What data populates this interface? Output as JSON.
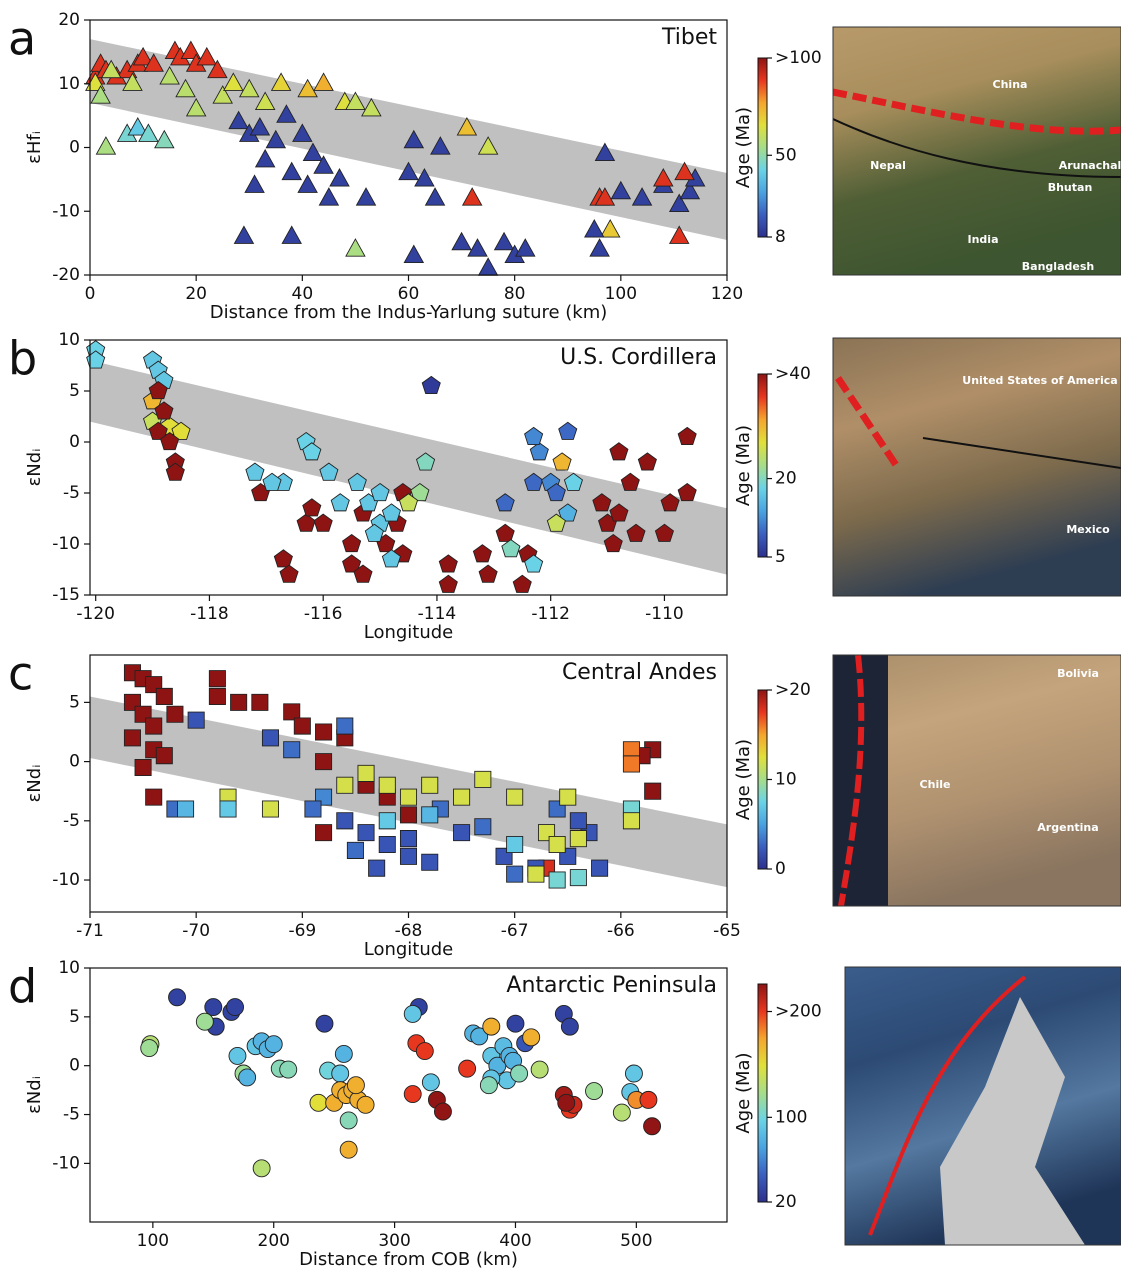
{
  "chart_data": [
    {
      "type": "scatter",
      "panel": "a",
      "title": "Tibet",
      "xlabel": "Distance from the Indus-Yarlung suture (km)",
      "ylabel": "εHfᵢ",
      "marker": "triangle",
      "xlim": [
        0,
        120
      ],
      "ylim": [
        -20,
        20
      ],
      "xticks": [
        0,
        20,
        40,
        60,
        80,
        100,
        120
      ],
      "yticks": [
        -20,
        -10,
        0,
        10,
        20
      ],
      "band": {
        "x": [
          0,
          120
        ],
        "upper": [
          17,
          -4
        ],
        "lower": [
          7,
          -14.5
        ],
        "color": "#c0c0c0"
      },
      "colorbar": {
        "label": "Age (Ma)",
        "clim": [
          8,
          100
        ],
        "ticks": [
          8,
          50,
          {
            "value": 100,
            "label": ">100"
          }
        ]
      },
      "colormap": [
        "#2d2f8c",
        "#3b5fc0",
        "#4aa3e0",
        "#6bd3e6",
        "#a6dd8a",
        "#e0e03a",
        "#f5a52e",
        "#e8361f",
        "#8e1414"
      ],
      "map_labels": [
        "China",
        "Nepal",
        "Arunachal",
        "Bhutan",
        "India",
        "Bangladesh"
      ],
      "x": [
        1,
        2,
        3,
        5,
        7,
        9,
        10,
        12,
        16,
        17,
        19,
        20,
        22,
        24,
        1,
        2,
        4,
        8,
        15,
        18,
        20,
        25,
        27,
        30,
        33,
        36,
        41,
        44,
        48,
        50,
        53,
        71,
        75,
        3,
        7,
        9,
        11,
        14,
        50,
        98,
        28,
        30,
        32,
        35,
        37,
        40,
        42,
        44,
        31,
        33,
        38,
        41,
        45,
        47,
        52,
        29,
        38,
        61,
        63,
        65,
        66,
        70,
        73,
        75,
        78,
        80,
        82,
        61,
        95,
        96,
        97,
        100,
        104,
        108,
        111,
        113,
        114,
        60,
        72,
        96,
        97,
        108,
        112,
        111
      ],
      "y": [
        11,
        13,
        12,
        11,
        12,
        13,
        14,
        13,
        15,
        14,
        15,
        13,
        14,
        12,
        10,
        8,
        12,
        10,
        11,
        9,
        6,
        8,
        10,
        9,
        7,
        10,
        9,
        10,
        7,
        7,
        6,
        3,
        0,
        0,
        2,
        3,
        2,
        1,
        -16,
        -13,
        4,
        2,
        3,
        1,
        5,
        2,
        -1,
        -3,
        -6,
        -2,
        -4,
        -6,
        -8,
        -5,
        -8,
        -14,
        -14,
        1,
        -5,
        -8,
        0,
        -15,
        -16,
        -19,
        -15,
        -17,
        -16,
        -17,
        -13,
        -16,
        -1,
        -7,
        -8,
        -6,
        -9,
        -7,
        -5,
        -4,
        -8,
        -8,
        -8,
        -5,
        -4,
        -14
      ],
      "age": [
        90,
        90,
        90,
        90,
        90,
        90,
        90,
        90,
        90,
        90,
        90,
        90,
        90,
        90,
        65,
        55,
        60,
        60,
        58,
        58,
        58,
        60,
        65,
        60,
        62,
        68,
        72,
        75,
        65,
        60,
        60,
        72,
        62,
        55,
        45,
        40,
        45,
        48,
        55,
        70,
        12,
        12,
        12,
        12,
        12,
        12,
        12,
        12,
        12,
        12,
        12,
        12,
        12,
        12,
        12,
        12,
        12,
        12,
        12,
        12,
        12,
        12,
        12,
        12,
        12,
        12,
        12,
        12,
        12,
        12,
        12,
        12,
        12,
        12,
        12,
        12,
        12,
        12,
        90,
        90,
        90,
        90,
        90,
        90
      ]
    },
    {
      "type": "scatter",
      "panel": "b",
      "title": "U.S. Cordillera",
      "xlabel": "Longitude",
      "ylabel": "εNdᵢ",
      "marker": "pentagon",
      "xlim": [
        -120.1,
        -108.9
      ],
      "ylim": [
        -15,
        10
      ],
      "xticks": [
        -120,
        -118,
        -116,
        -114,
        -112,
        -110
      ],
      "yticks": [
        -15,
        -10,
        -5,
        0,
        5,
        10
      ],
      "band": {
        "x": [
          -120.1,
          -108.9
        ],
        "upper": [
          8,
          -6.5
        ],
        "lower": [
          2,
          -13
        ],
        "color": "#c0c0c0"
      },
      "colorbar": {
        "label": "Age (Ma)",
        "clim": [
          5,
          40
        ],
        "ticks": [
          5,
          20,
          {
            "value": 40,
            "label": ">40"
          }
        ]
      },
      "colormap": [
        "#2d2f8c",
        "#3b5fc0",
        "#4aa3e0",
        "#6bd3e6",
        "#a6dd8a",
        "#e0e03a",
        "#f5a52e",
        "#e8361f",
        "#8e1414"
      ],
      "map_labels": [
        "United States of America",
        "Mexico"
      ],
      "x": [
        -120,
        -120,
        -119,
        -118.9,
        -118.8,
        -119,
        -119,
        -118.7,
        -118.5,
        -118.9,
        -118.8,
        -118.9,
        -118.7,
        -118.6,
        -118.6,
        -117.1,
        -116.7,
        -116.6,
        -116.3,
        -116.2,
        -116,
        -115.5,
        -115.5,
        -115.3,
        -115.3,
        -114.9,
        -114.7,
        -114.6,
        -114.6,
        -113.8,
        -113.8,
        -113.2,
        -113.1,
        -112.8,
        -112.5,
        -112.4,
        -111,
        -110.8,
        -110.6,
        -110.5,
        -110.3,
        -110,
        -109.6,
        -109.6,
        -110.9,
        -111.1,
        -109.9,
        -110.8,
        -116.3,
        -116.2,
        -116.7,
        -115.9,
        -115.7,
        -115.4,
        -115.2,
        -115,
        -115,
        -114.8,
        -115.1,
        -114.8,
        -114.2,
        -114.3,
        -114.5,
        -114.1,
        -116.9,
        -117.2,
        -112.8,
        -112.3,
        -112.2,
        -112,
        -111.8,
        -111.7,
        -111.9,
        -112.7,
        -112.3,
        -111.7,
        -112.3,
        -111.9,
        -111.6
      ],
      "y": [
        9,
        8,
        8,
        7,
        6,
        4,
        2,
        1.5,
        1,
        5,
        3,
        1,
        0,
        -2,
        -3,
        -5,
        -11.5,
        -13,
        -8,
        -6.5,
        -8,
        -10,
        -12,
        -13,
        -7,
        -10,
        -8,
        -11,
        -5,
        -12,
        -14,
        -11,
        -13,
        -9,
        -14,
        -11,
        -8,
        -7,
        -4,
        -9,
        -2,
        -9,
        0.5,
        -5,
        -10,
        -6,
        -6,
        -1,
        0,
        -1,
        -4,
        -3,
        -6,
        -4,
        -6,
        -5,
        -8,
        -7,
        -9,
        -11.5,
        -2,
        -5,
        -6,
        5.5,
        -4,
        -3,
        -6,
        -4,
        -1,
        -4,
        -2,
        -7,
        -8,
        -10.5,
        -12,
        1,
        0.5,
        -5,
        -4
      ],
      "age": [
        18,
        18,
        17,
        17,
        17,
        30,
        25,
        27,
        27,
        40,
        40,
        40,
        40,
        40,
        40,
        40,
        40,
        40,
        40,
        40,
        40,
        40,
        40,
        40,
        40,
        40,
        40,
        40,
        40,
        40,
        40,
        40,
        40,
        40,
        40,
        40,
        40,
        40,
        40,
        40,
        40,
        40,
        40,
        40,
        40,
        40,
        40,
        40,
        18,
        18,
        17,
        17,
        17,
        17,
        17,
        17,
        17,
        17,
        17,
        17,
        20,
        22,
        25,
        6,
        17,
        17,
        10,
        10,
        12,
        12,
        30,
        15,
        25,
        20,
        18,
        10,
        12,
        10,
        18
      ]
    },
    {
      "type": "scatter",
      "panel": "c",
      "title": "Central Andes",
      "xlabel": "Longitude",
      "ylabel": "εNdᵢ",
      "marker": "square",
      "xlim": [
        -71,
        -65
      ],
      "ylim": [
        -12.7,
        9
      ],
      "xticks": [
        -71,
        -70,
        -69,
        -68,
        -67,
        -66,
        -65
      ],
      "yticks": [
        -10,
        -5,
        0,
        5
      ],
      "band": {
        "x": [
          -71,
          -65
        ],
        "upper": [
          5.5,
          -5.3
        ],
        "lower": [
          0.3,
          -10.6
        ],
        "color": "#c0c0c0"
      },
      "colorbar": {
        "label": "Age (Ma)",
        "clim": [
          0,
          20
        ],
        "ticks": [
          0,
          10,
          {
            "value": 20,
            "label": ">20"
          }
        ]
      },
      "colormap": [
        "#2d2f8c",
        "#3b5fc0",
        "#4aa3e0",
        "#6bd3e6",
        "#a6dd8a",
        "#e0e03a",
        "#f5a52e",
        "#e8361f",
        "#8e1414"
      ],
      "map_labels": [
        "Bolivia",
        "Chile",
        "Argentina"
      ],
      "x": [
        -70.6,
        -70.5,
        -70.4,
        -70.6,
        -70.5,
        -70.4,
        -70.6,
        -70.4,
        -70.3,
        -70.5,
        -70.3,
        -70.2,
        -70.4,
        -69.8,
        -69.8,
        -69.6,
        -69.4,
        -69.1,
        -69,
        -68.8,
        -68.6,
        -68.8,
        -68.4,
        -68.2,
        -68,
        -68.8,
        -65.7,
        -65.7,
        -65.8,
        -66.7,
        -70,
        -70.2,
        -69.3,
        -69.1,
        -68.6,
        -68.8,
        -68.6,
        -68.4,
        -68.2,
        -68,
        -67.8,
        -68.5,
        -68.9,
        -68,
        -67.5,
        -67.7,
        -67.3,
        -66.8,
        -66.5,
        -66.3,
        -66.2,
        -66.6,
        -66.4,
        -68.3,
        -67.1,
        -67,
        -69.7,
        -69.3,
        -68.6,
        -68.4,
        -68.2,
        -68,
        -67.8,
        -67.5,
        -67.3,
        -67,
        -66.7,
        -66.6,
        -66.5,
        -66.4,
        -66.8,
        -66.6,
        -66.4,
        -65.9,
        -65.9,
        -67,
        -69.7,
        -70.1,
        -65.9,
        -65.9,
        -68.2,
        -67.8
      ],
      "y": [
        7.5,
        7,
        6.5,
        5,
        4,
        3,
        2,
        1,
        0.5,
        -0.5,
        5.5,
        4,
        -3,
        7,
        5.5,
        5,
        5,
        4.2,
        3,
        2.5,
        2,
        0,
        -2,
        -3,
        -4.5,
        -6,
        1,
        -2.5,
        0.5,
        -9,
        3.5,
        -4,
        2,
        1,
        3,
        -3,
        -5,
        -6,
        -7,
        -8,
        -8.5,
        -7.5,
        -4,
        -6.5,
        -6,
        -4,
        -5.5,
        -9,
        -8,
        -6,
        -9,
        -4,
        -5,
        -9,
        -8,
        -9.5,
        -3,
        -4,
        -2,
        -1,
        -2,
        -3,
        -2,
        -3,
        -1.5,
        -3,
        -6,
        -7,
        -3,
        -6.5,
        -9.5,
        -10,
        -9.8,
        -4,
        -5,
        -7,
        -4,
        -4,
        1,
        -0.2,
        -5,
        -4.5
      ],
      "age": [
        20,
        20,
        20,
        20,
        20,
        20,
        20,
        20,
        20,
        20,
        20,
        20,
        20,
        20,
        20,
        20,
        20,
        20,
        20,
        20,
        20,
        20,
        20,
        20,
        20,
        20,
        20,
        20,
        20,
        18,
        2,
        3,
        2,
        3,
        3,
        4,
        2,
        2,
        2,
        2,
        2,
        3,
        3,
        2,
        2,
        3,
        3,
        2,
        2,
        2,
        2,
        3,
        2,
        2,
        2,
        3,
        12,
        12,
        12,
        12,
        12,
        12,
        12,
        12,
        12,
        12,
        12,
        12,
        12,
        12,
        12,
        8,
        8,
        8,
        12,
        7,
        7,
        6,
        16,
        16,
        7,
        6
      ]
    },
    {
      "type": "scatter",
      "panel": "d",
      "title": "Antarctic Peninsula",
      "xlabel": "Distance from COB (km)",
      "ylabel": "εNdᵢ",
      "marker": "circle",
      "xlim": [
        48,
        575
      ],
      "ylim": [
        -16,
        10
      ],
      "xticks": [
        100,
        200,
        300,
        400,
        500
      ],
      "yticks": [
        -10,
        -5,
        0,
        5,
        10
      ],
      "colorbar": {
        "label": "Age (Ma)",
        "clim": [
          20,
          226
        ],
        "ticks": [
          20,
          100,
          {
            "value": 200,
            "label": ">200"
          }
        ]
      },
      "colormap": [
        "#2d2f8c",
        "#3b5fc0",
        "#4aa3e0",
        "#6bd3e6",
        "#a6dd8a",
        "#e0e03a",
        "#f5a52e",
        "#e8361f",
        "#8e1414"
      ],
      "x": [
        120,
        150,
        152,
        165,
        168,
        242,
        320,
        440,
        445,
        400,
        408,
        98,
        97,
        143,
        175,
        170,
        178,
        185,
        190,
        195,
        200,
        205,
        212,
        245,
        255,
        258,
        262,
        190,
        237,
        315,
        365,
        370,
        380,
        385,
        390,
        393,
        395,
        398,
        403,
        380,
        420,
        378,
        330,
        498,
        495,
        465,
        488,
        262,
        250,
        255,
        260,
        265,
        270,
        276,
        268,
        500,
        380,
        413,
        318,
        325,
        360,
        315,
        440,
        445,
        448,
        510,
        335,
        340,
        513,
        442
      ],
      "y": [
        7,
        6,
        4,
        5.5,
        6,
        4.3,
        6,
        5.3,
        4,
        4.3,
        2.3,
        2.2,
        1.8,
        4.5,
        -0.8,
        1,
        -1.2,
        2,
        2.5,
        1.7,
        2.2,
        -0.3,
        -0.4,
        -0.5,
        -0.8,
        1.2,
        -5.6,
        -10.5,
        -3.8,
        5.3,
        3.3,
        3,
        1,
        0,
        2,
        -1.5,
        1,
        0.5,
        -0.8,
        -1.3,
        -0.4,
        -2,
        -1.7,
        -0.8,
        -2.7,
        -2.6,
        -4.8,
        -8.6,
        -3.8,
        -2.5,
        -3,
        -2.5,
        -3.5,
        -4,
        -2,
        -3.5,
        4,
        2.9,
        2.3,
        1.5,
        -0.3,
        -2.9,
        -3,
        -4.5,
        -4,
        -3.5,
        -3.5,
        -4.7,
        -6.2,
        -3.8
      ],
      "age": [
        30,
        30,
        30,
        30,
        30,
        30,
        30,
        30,
        30,
        30,
        40,
        130,
        120,
        120,
        120,
        90,
        80,
        90,
        80,
        80,
        80,
        110,
        110,
        100,
        90,
        80,
        110,
        130,
        150,
        90,
        80,
        80,
        90,
        80,
        85,
        90,
        80,
        80,
        110,
        90,
        130,
        110,
        90,
        90,
        90,
        120,
        130,
        170,
        170,
        170,
        170,
        170,
        170,
        170,
        170,
        180,
        170,
        170,
        200,
        200,
        200,
        200,
        220,
        200,
        210,
        200,
        225,
        225,
        225,
        225
      ]
    }
  ]
}
